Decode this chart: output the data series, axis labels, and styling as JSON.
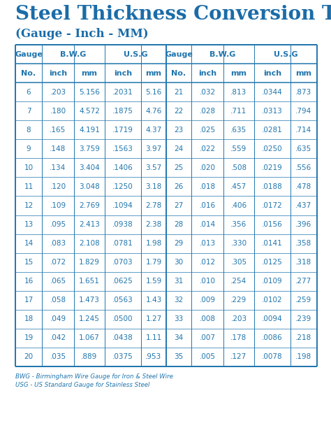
{
  "title_main": "Steel Thickness Conversion Table",
  "title_sub": "(Gauge - Inch - MM)",
  "title_color": "#1b6ca8",
  "table_color": "#2176ae",
  "bg_color": "#ffffff",
  "footnote1": "BWG - Birmingham Wire Gauge for Iron & Steel Wire",
  "footnote2": "USG - US Standard Gauge for Stainless Steel",
  "left_data": [
    [
      "6",
      ".203",
      "5.156",
      ".2031",
      "5.16"
    ],
    [
      "7",
      ".180",
      "4.572",
      ".1875",
      "4.76"
    ],
    [
      "8",
      ".165",
      "4.191",
      ".1719",
      "4.37"
    ],
    [
      "9",
      ".148",
      "3.759",
      ".1563",
      "3.97"
    ],
    [
      "10",
      ".134",
      "3.404",
      ".1406",
      "3.57"
    ],
    [
      "11",
      ".120",
      "3.048",
      ".1250",
      "3.18"
    ],
    [
      "12",
      ".109",
      "2.769",
      ".1094",
      "2.78"
    ],
    [
      "13",
      ".095",
      "2.413",
      ".0938",
      "2.38"
    ],
    [
      "14",
      ".083",
      "2.108",
      ".0781",
      "1.98"
    ],
    [
      "15",
      ".072",
      "1.829",
      ".0703",
      "1.79"
    ],
    [
      "16",
      ".065",
      "1.651",
      ".0625",
      "1.59"
    ],
    [
      "17",
      ".058",
      "1.473",
      ".0563",
      "1.43"
    ],
    [
      "18",
      ".049",
      "1.245",
      ".0500",
      "1.27"
    ],
    [
      "19",
      ".042",
      "1.067",
      ".0438",
      "1.11"
    ],
    [
      "20",
      ".035",
      ".889",
      ".0375",
      ".953"
    ]
  ],
  "right_data": [
    [
      "21",
      ".032",
      ".813",
      ".0344",
      ".873"
    ],
    [
      "22",
      ".028",
      ".711",
      ".0313",
      ".794"
    ],
    [
      "23",
      ".025",
      ".635",
      ".0281",
      ".714"
    ],
    [
      "24",
      ".022",
      ".559",
      ".0250",
      ".635"
    ],
    [
      "25",
      ".020",
      ".508",
      ".0219",
      ".556"
    ],
    [
      "26",
      ".018",
      ".457",
      ".0188",
      ".478"
    ],
    [
      "27",
      ".016",
      ".406",
      ".0172",
      ".437"
    ],
    [
      "28",
      ".014",
      ".356",
      ".0156",
      ".396"
    ],
    [
      "29",
      ".013",
      ".330",
      ".0141",
      ".358"
    ],
    [
      "30",
      ".012",
      ".305",
      ".0125",
      ".318"
    ],
    [
      "31",
      ".010",
      ".254",
      ".0109",
      ".277"
    ],
    [
      "32",
      ".009",
      ".229",
      ".0102",
      ".259"
    ],
    [
      "33",
      ".008",
      ".203",
      ".0094",
      ".239"
    ],
    [
      "34",
      ".007",
      ".178",
      ".0086",
      ".218"
    ],
    [
      "35",
      ".005",
      ".127",
      ".0078",
      ".198"
    ]
  ],
  "header1_left": [
    "Gauge",
    "B.W.G",
    "U.S.G"
  ],
  "header1_right": [
    "Gauge",
    "B.W.G",
    "U.S.G"
  ],
  "header2": [
    "No.",
    "inch",
    "mm",
    "inch",
    "mm"
  ],
  "title_fontsize_main": 20,
  "title_fontsize_sub": 12,
  "header1_fontsize": 8,
  "header2_fontsize": 8,
  "data_fontsize": 7.5,
  "footnote_fontsize": 6.2
}
